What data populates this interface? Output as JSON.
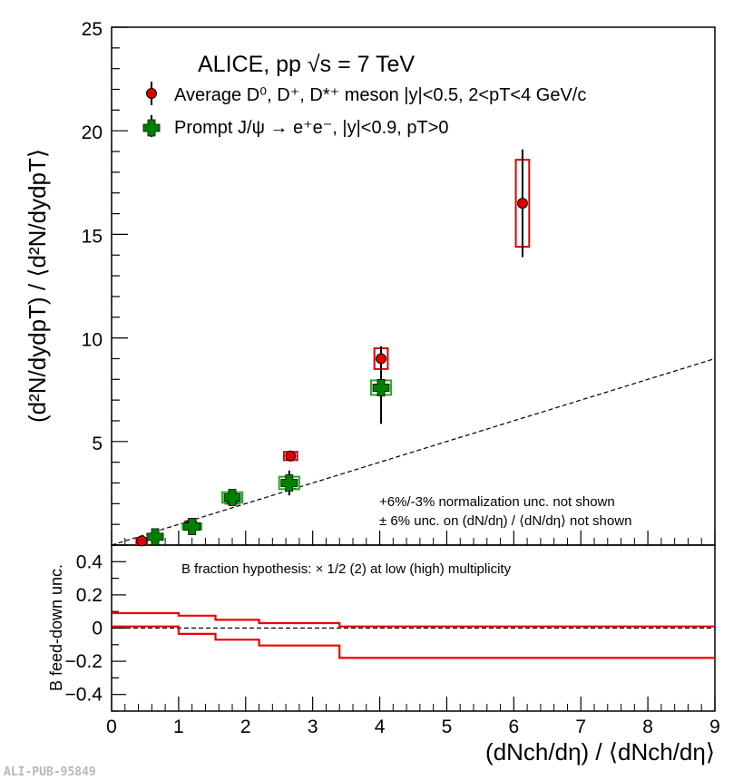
{
  "watermark": "ALI-PUB-95849",
  "chart_data": [
    {
      "type": "scatter",
      "title": "ALICE, pp √s = 7 TeV",
      "xlabel": "(dNch/dη) / ⟨dNch/dη⟩",
      "ylabel": "(d²N/dydpT) / ⟨d²N/dydpT⟩",
      "xlim": [
        0,
        9
      ],
      "ylim": [
        0,
        25
      ],
      "xticks": [
        "0",
        "1",
        "2",
        "3",
        "4",
        "5",
        "6",
        "7",
        "8",
        "9"
      ],
      "yticks": [
        "5",
        "10",
        "15",
        "20",
        "25"
      ],
      "series": [
        {
          "name": "Average D⁰, D⁺, D*⁺ meson |y|<0.5, 2<pT<4 GeV/c",
          "color": "#dd0000",
          "box_color": "#dd0000",
          "points": [
            {
              "x": 0.45,
              "y": 0.2,
              "stat": 0.1,
              "sys_dx": 0.08,
              "sys_dy": 0.15
            },
            {
              "x": 1.18,
              "y": 1.0,
              "stat": 0.2,
              "sys_dx": 0.08,
              "sys_dy": 0.15
            },
            {
              "x": 1.8,
              "y": 2.2,
              "stat": 0.3,
              "sys_dx": 0.1,
              "sys_dy": 0.2
            },
            {
              "x": 2.67,
              "y": 4.3,
              "stat": 0.25,
              "sys_dx": 0.1,
              "sys_dy": 0.2
            },
            {
              "x": 4.02,
              "y": 9.0,
              "stat": 0.6,
              "sys_dx": 0.1,
              "sys_dy": 0.5
            },
            {
              "x": 6.13,
              "y": 16.5,
              "stat": 2.6,
              "sys_dx": 0.1,
              "sys_dy": 2.1
            }
          ]
        },
        {
          "name": "Prompt J/ψ → e⁺e⁻, |y|<0.9, pT>0",
          "color": "#008000",
          "box_color": "#22aa22",
          "points": [
            {
              "x": 0.65,
              "y": 0.4,
              "stat": 0.15,
              "sys_dx": 0.1,
              "sys_dy": 0.1
            },
            {
              "x": 1.2,
              "y": 0.9,
              "stat": 0.2,
              "sys_dx": 0.14,
              "sys_dy": 0.15
            },
            {
              "x": 1.8,
              "y": 2.3,
              "stat": 0.3,
              "sys_dx": 0.15,
              "sys_dy": 0.25
            },
            {
              "x": 2.65,
              "y": 3.0,
              "stat": 0.6,
              "sys_dx": 0.15,
              "sys_dy": 0.3
            },
            {
              "x": 4.02,
              "y": 7.6,
              "stat": 1.75,
              "sys_dx": 0.15,
              "sys_dy": 0.35
            }
          ]
        }
      ],
      "reference_line": {
        "style": "dashed",
        "from": [
          0,
          0
        ],
        "to": [
          9,
          9
        ]
      },
      "annotations": [
        "+6%/-3% normalization unc. not shown",
        "± 6% unc. on (dN/dη) / ⟨dN/dη⟩ not shown"
      ]
    },
    {
      "type": "line",
      "title": "B fraction hypothesis: × 1/2 (2) at low (high) multiplicity",
      "xlabel": "(dNch/dη) / ⟨dNch/dη⟩",
      "ylabel": "B feed-down unc.",
      "xlim": [
        0,
        9
      ],
      "ylim": [
        -0.5,
        0.5
      ],
      "yticks": [
        "0.4",
        "0.2",
        "0",
        "−0.2",
        "−0.4"
      ],
      "ytick_values": [
        0.4,
        0.2,
        0,
        -0.2,
        -0.4
      ],
      "series": [
        {
          "name": "upper",
          "color": "#ee0000",
          "steps": [
            [
              0,
              0.09
            ],
            [
              1.0,
              0.09
            ],
            [
              1.0,
              0.075
            ],
            [
              1.55,
              0.075
            ],
            [
              1.55,
              0.05
            ],
            [
              2.2,
              0.05
            ],
            [
              2.2,
              0.03
            ],
            [
              3.4,
              0.03
            ],
            [
              3.4,
              0.01
            ],
            [
              9,
              0.01
            ]
          ]
        },
        {
          "name": "lower",
          "color": "#ee0000",
          "steps": [
            [
              0,
              0.01
            ],
            [
              1.0,
              0.01
            ],
            [
              1.0,
              -0.035
            ],
            [
              1.55,
              -0.035
            ],
            [
              1.55,
              -0.07
            ],
            [
              2.2,
              -0.07
            ],
            [
              2.2,
              -0.105
            ],
            [
              3.4,
              -0.105
            ],
            [
              3.4,
              -0.18
            ],
            [
              9,
              -0.18
            ]
          ]
        }
      ],
      "reference_line": {
        "style": "dashed",
        "y": 0
      }
    }
  ]
}
